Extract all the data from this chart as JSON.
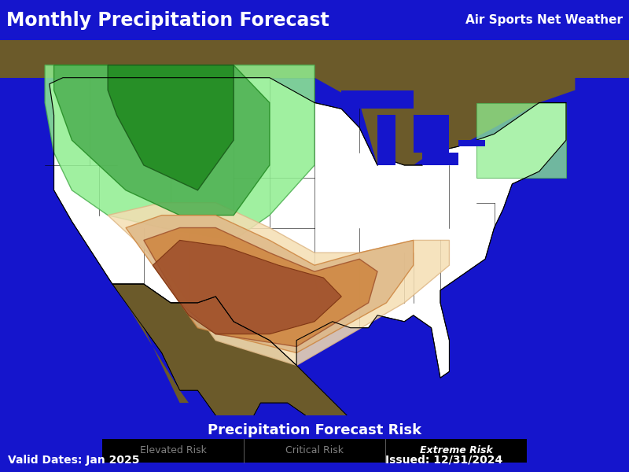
{
  "title": "Monthly Precipitation Forecast",
  "subtitle": "Air Sports Net Weather",
  "title_bg": "#7B1A1A",
  "map_bg_ocean": "#1515CC",
  "map_bg_canada": "#6B5A2A",
  "map_bg_us": "#FFFFFF",
  "bottom_bar_bg": "#0000CC",
  "bottom_bar_text": "Precipitation Forecast Risk",
  "risk_labels": [
    "Elevated Risk",
    "Critical Risk",
    "Extreme Risk"
  ],
  "valid_dates": "Valid Dates: Jan 2025",
  "issued": "Issued: 12/31/2024",
  "green_outer_color": "#90EE90",
  "green_mid_color": "#4CAF50",
  "green_inner_color": "#228B22",
  "orange_outer_color": "#F5DEB3",
  "orange_mid_color": "#DEB887",
  "orange_inner_color": "#CD853F",
  "orange_core_color": "#A0522D",
  "ne_green_color": "#90EE90",
  "fig_width": 8.0,
  "fig_height": 6.0,
  "dpi": 100
}
